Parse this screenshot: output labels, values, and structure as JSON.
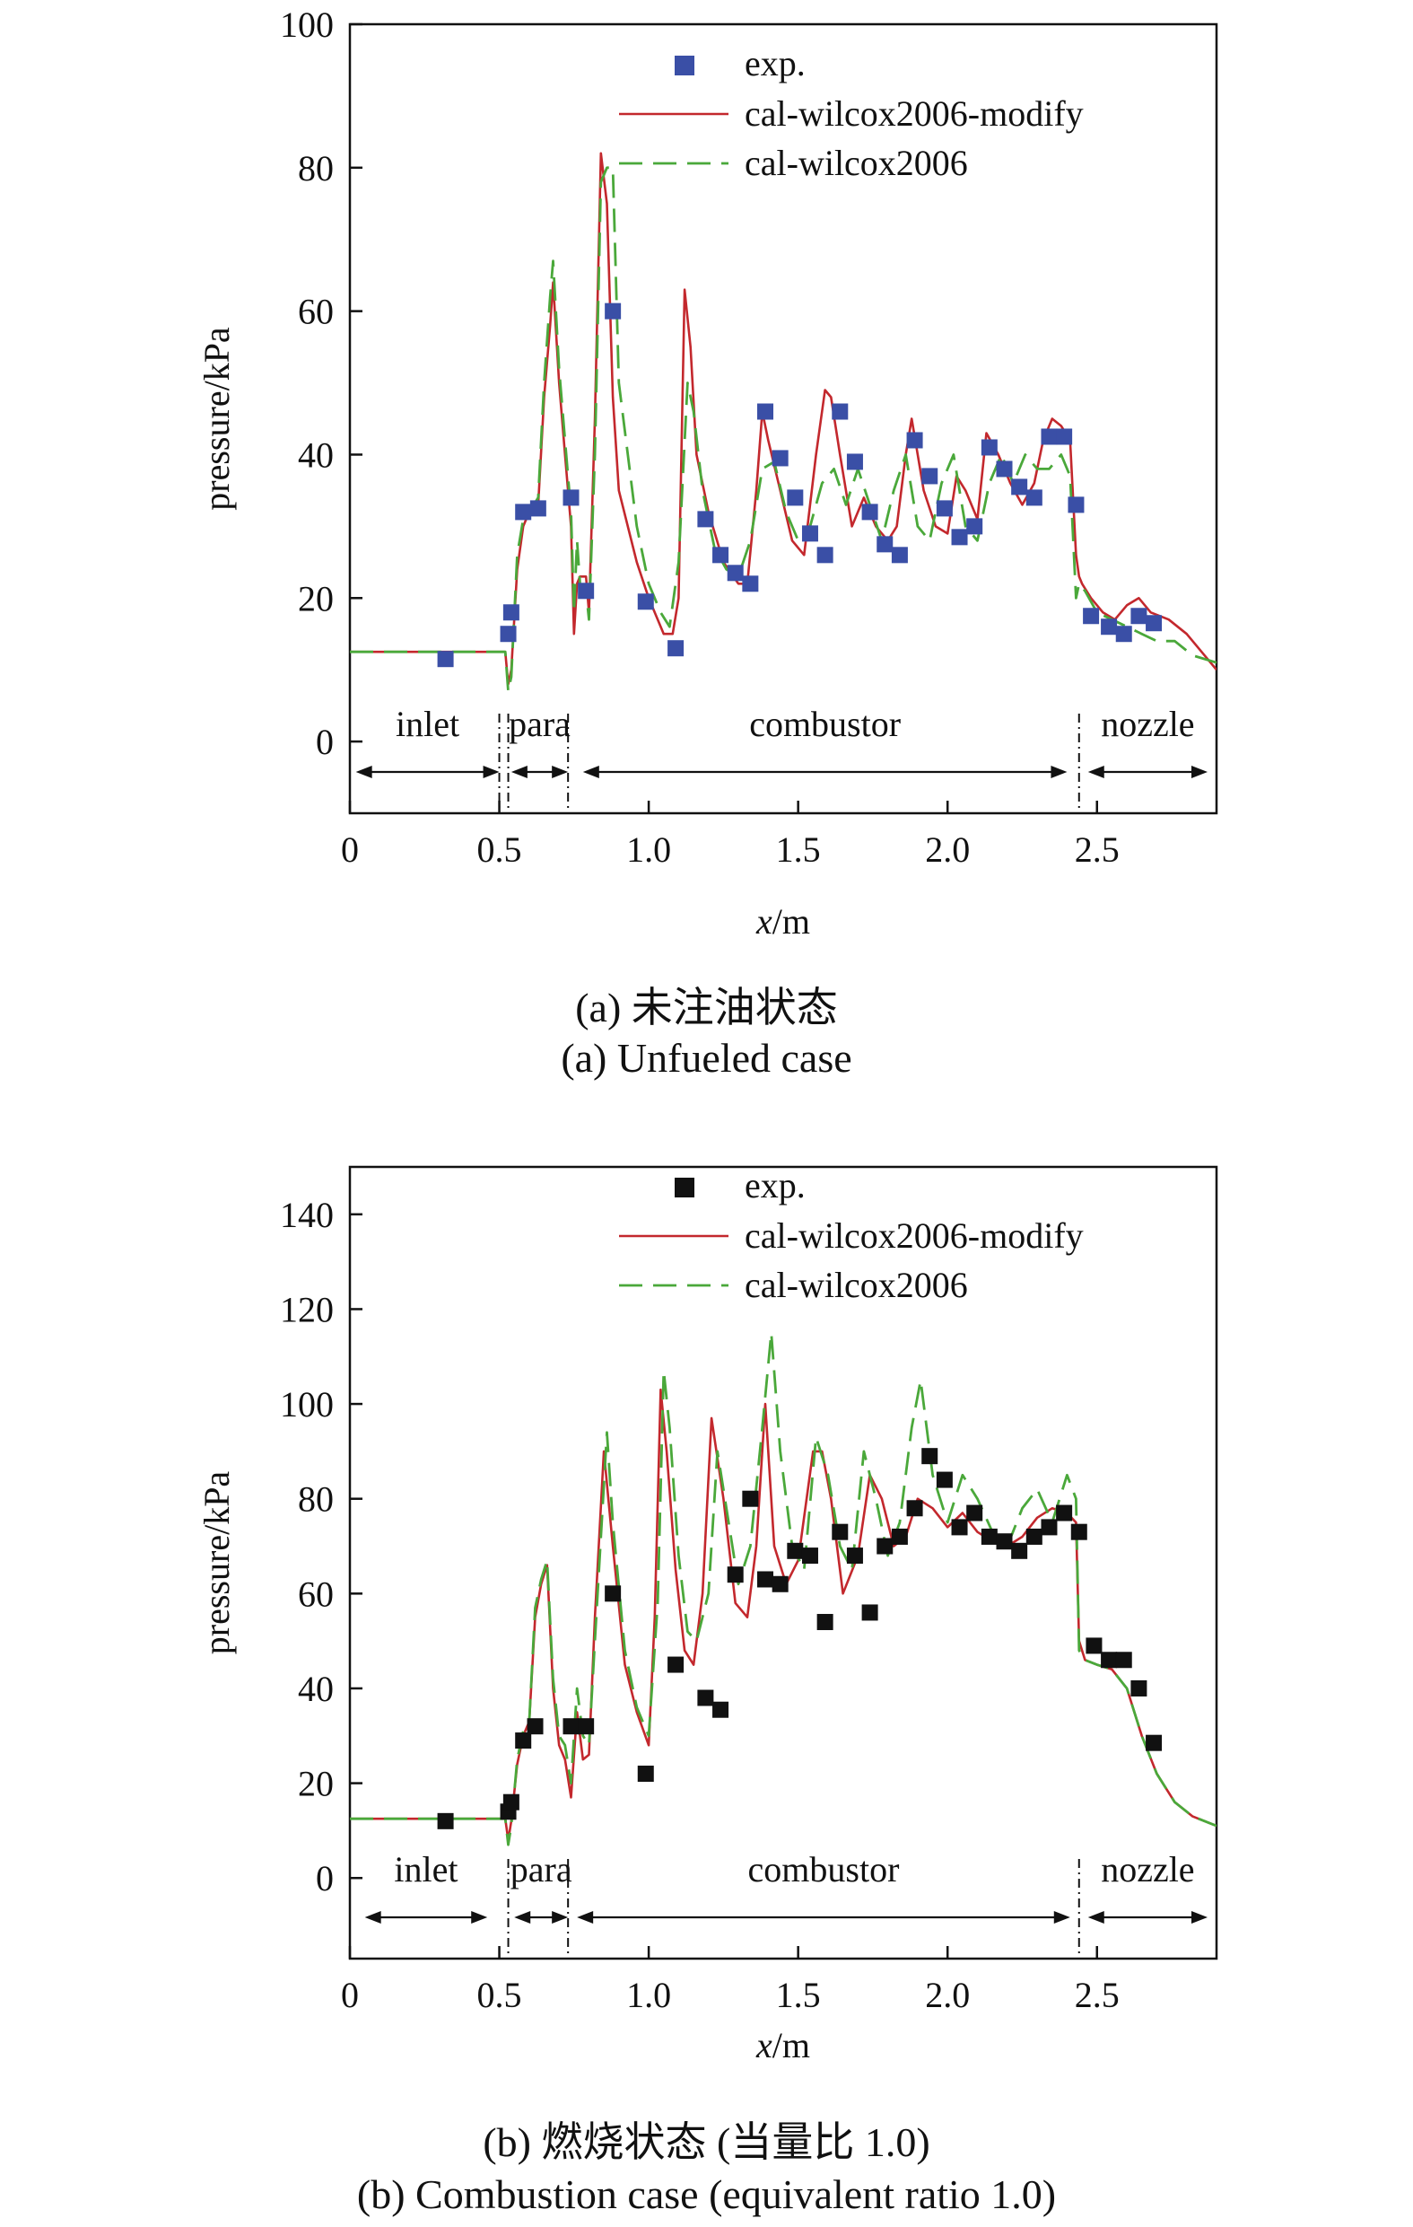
{
  "chart_data": [
    {
      "type": "line",
      "caption_cn": "(a) 未注油状态",
      "caption_en": "(a) Unfueled case",
      "xlabel_var": "x",
      "xlabel_unit": "/m",
      "ylabel": "pressure/kPa",
      "xlim": [
        0,
        2.9
      ],
      "ylim": [
        -10,
        100
      ],
      "xticks": [
        0,
        0.5,
        1.0,
        1.5,
        2.0,
        2.5
      ],
      "xtick_labels": [
        "0",
        "0.5",
        "1.0",
        "1.5",
        "2.0",
        "2.5"
      ],
      "yticks": [
        0,
        20,
        40,
        60,
        80,
        100
      ],
      "ytick_labels": [
        "0",
        "20",
        "40",
        "60",
        "80",
        "100"
      ],
      "grid": false,
      "legend_position": "top-center",
      "legend": [
        "exp.",
        "cal-wilcox2006-modify",
        "cal-wilcox2006"
      ],
      "colors": {
        "exp": "#3a4fa6",
        "modify": "#c3282d",
        "base": "#4aa83a"
      },
      "series": [
        {
          "name": "exp.",
          "kind": "scatter",
          "x": [
            0.32,
            0.53,
            0.54,
            0.58,
            0.63,
            0.74,
            0.79,
            0.88,
            0.99,
            1.09,
            1.19,
            1.24,
            1.29,
            1.34,
            1.39,
            1.44,
            1.49,
            1.54,
            1.59,
            1.64,
            1.69,
            1.74,
            1.79,
            1.84,
            1.89,
            1.94,
            1.99,
            2.04,
            2.09,
            2.14,
            2.19,
            2.24,
            2.29,
            2.34,
            2.39,
            2.43,
            2.48,
            2.54,
            2.59,
            2.64,
            2.69
          ],
          "y": [
            11.5,
            15,
            18,
            32,
            32.5,
            34,
            21,
            60,
            19.5,
            13,
            31,
            26,
            23.5,
            22,
            46,
            39.5,
            34,
            29,
            26,
            46,
            39,
            32,
            27.5,
            26,
            42,
            37,
            32.5,
            28.5,
            30,
            41,
            38,
            35.5,
            34,
            42.5,
            42.5,
            33,
            17.5,
            16,
            15,
            17.5,
            16.5
          ]
        },
        {
          "name": "cal-wilcox2006-modify",
          "kind": "line",
          "style": "solid",
          "x": [
            0,
            0.05,
            0.1,
            0.3,
            0.5,
            0.52,
            0.53,
            0.54,
            0.56,
            0.58,
            0.6,
            0.63,
            0.65,
            0.67,
            0.68,
            0.7,
            0.72,
            0.74,
            0.75,
            0.76,
            0.77,
            0.79,
            0.8,
            0.82,
            0.84,
            0.86,
            0.88,
            0.9,
            0.93,
            0.96,
            1.0,
            1.05,
            1.08,
            1.1,
            1.12,
            1.14,
            1.16,
            1.2,
            1.25,
            1.3,
            1.33,
            1.36,
            1.38,
            1.4,
            1.44,
            1.48,
            1.52,
            1.56,
            1.59,
            1.61,
            1.64,
            1.68,
            1.72,
            1.76,
            1.8,
            1.83,
            1.86,
            1.88,
            1.92,
            1.96,
            2.0,
            2.03,
            2.06,
            2.1,
            2.13,
            2.17,
            2.21,
            2.25,
            2.29,
            2.32,
            2.35,
            2.38,
            2.41,
            2.43,
            2.44,
            2.45,
            2.48,
            2.52,
            2.56,
            2.6,
            2.64,
            2.68,
            2.74,
            2.8,
            2.86,
            2.9
          ],
          "y": [
            12.5,
            12.5,
            12.5,
            12.5,
            12.5,
            12.5,
            8,
            10,
            24,
            30,
            32,
            33,
            48,
            58,
            64,
            50,
            40,
            30,
            15,
            22,
            23,
            23,
            18,
            45,
            82,
            75,
            48,
            35,
            30,
            25,
            20,
            15,
            15,
            20,
            63,
            55,
            40,
            32,
            25,
            22,
            22,
            35,
            46,
            42,
            35,
            28,
            26,
            40,
            49,
            48,
            40,
            30,
            34,
            30,
            28,
            30,
            40,
            45,
            35,
            30,
            29,
            37,
            35,
            31,
            43,
            40,
            36,
            33,
            36,
            42,
            45,
            44,
            42,
            26,
            23,
            22,
            20,
            18,
            17,
            19,
            20,
            18,
            17,
            15,
            12,
            10
          ]
        },
        {
          "name": "cal-wilcox2006",
          "kind": "line",
          "style": "dashed",
          "x": [
            0,
            0.05,
            0.1,
            0.3,
            0.5,
            0.52,
            0.53,
            0.54,
            0.56,
            0.58,
            0.6,
            0.63,
            0.65,
            0.67,
            0.68,
            0.7,
            0.72,
            0.74,
            0.75,
            0.76,
            0.77,
            0.79,
            0.8,
            0.82,
            0.84,
            0.86,
            0.88,
            0.9,
            0.93,
            0.96,
            1.0,
            1.04,
            1.07,
            1.1,
            1.13,
            1.15,
            1.18,
            1.22,
            1.26,
            1.3,
            1.34,
            1.38,
            1.42,
            1.46,
            1.5,
            1.54,
            1.58,
            1.62,
            1.66,
            1.7,
            1.74,
            1.78,
            1.82,
            1.86,
            1.9,
            1.94,
            1.98,
            2.02,
            2.06,
            2.1,
            2.14,
            2.18,
            2.22,
            2.26,
            2.3,
            2.34,
            2.38,
            2.41,
            2.43,
            2.44,
            2.46,
            2.5,
            2.55,
            2.6,
            2.65,
            2.7,
            2.76,
            2.82,
            2.9
          ],
          "y": [
            12.5,
            12.5,
            12.5,
            12.5,
            12.5,
            12.5,
            7,
            9,
            26,
            31,
            32,
            34,
            50,
            62,
            67,
            52,
            42,
            32,
            18,
            28,
            22,
            21,
            17,
            40,
            78,
            80,
            80,
            50,
            40,
            30,
            22,
            18,
            16,
            25,
            50,
            46,
            35,
            27,
            24,
            23,
            28,
            38,
            39,
            32,
            28,
            30,
            36,
            38,
            33,
            38,
            33,
            28,
            35,
            40,
            30,
            28,
            36,
            40,
            30,
            28,
            36,
            40,
            36,
            40,
            38,
            38,
            40,
            37,
            20,
            22,
            21,
            18,
            17,
            16,
            15,
            14,
            14,
            12,
            11
          ]
        }
      ],
      "regions": [
        {
          "label": "inlet",
          "from": 0.02,
          "to": 0.5,
          "boundary": 0.5
        },
        {
          "label": "para",
          "from": 0.54,
          "to": 0.73,
          "boundary": 0.73
        },
        {
          "label": "combustor",
          "from": 0.78,
          "to": 2.4,
          "boundary": 2.44
        },
        {
          "label": "nozzle",
          "from": 2.47,
          "to": 2.87,
          "boundary": null
        }
      ],
      "boundaries": [
        0.5,
        0.53,
        0.73,
        2.44
      ]
    },
    {
      "type": "line",
      "caption_cn": "(b) 燃烧状态 (当量比 1.0)",
      "caption_en": "(b) Combustion case (equivalent ratio 1.0)",
      "xlabel_var": "x",
      "xlabel_unit": "/m",
      "ylabel": "pressure/kPa",
      "xlim": [
        0,
        2.9
      ],
      "ylim": [
        -17,
        150
      ],
      "xticks": [
        0,
        0.5,
        1.0,
        1.5,
        2.0,
        2.5
      ],
      "xtick_labels": [
        "0",
        "0.5",
        "1.0",
        "1.5",
        "2.0",
        "2.5"
      ],
      "yticks": [
        0,
        20,
        40,
        60,
        80,
        100,
        120,
        140
      ],
      "ytick_labels": [
        "0",
        "20",
        "40",
        "60",
        "80",
        "100",
        "120",
        "140"
      ],
      "grid": false,
      "legend_position": "top-center",
      "legend": [
        "exp.",
        "cal-wilcox2006-modify",
        "cal-wilcox2006"
      ],
      "colors": {
        "exp": "#111111",
        "modify": "#c3282d",
        "base": "#4aa83a"
      },
      "series": [
        {
          "name": "exp.",
          "kind": "scatter",
          "x": [
            0.32,
            0.53,
            0.54,
            0.58,
            0.62,
            0.74,
            0.79,
            0.88,
            0.99,
            1.09,
            1.19,
            1.24,
            1.29,
            1.34,
            1.39,
            1.44,
            1.49,
            1.54,
            1.59,
            1.64,
            1.69,
            1.74,
            1.79,
            1.84,
            1.89,
            1.94,
            1.99,
            2.04,
            2.09,
            2.14,
            2.19,
            2.24,
            2.29,
            2.34,
            2.39,
            2.44,
            2.49,
            2.54,
            2.59,
            2.64,
            2.69
          ],
          "y": [
            12,
            14,
            16,
            29,
            32,
            32,
            32,
            60,
            22,
            45,
            38,
            35.5,
            64,
            80,
            63,
            62,
            69,
            68,
            54,
            73,
            68,
            56,
            70,
            72,
            78,
            89,
            84,
            74,
            77,
            72,
            71,
            69,
            72,
            74,
            77,
            73,
            49,
            46,
            46,
            40,
            28.5
          ]
        },
        {
          "name": "cal-wilcox2006-modify",
          "kind": "line",
          "style": "solid",
          "x": [
            0,
            0.05,
            0.1,
            0.3,
            0.5,
            0.52,
            0.53,
            0.54,
            0.56,
            0.58,
            0.6,
            0.62,
            0.64,
            0.66,
            0.68,
            0.7,
            0.72,
            0.74,
            0.76,
            0.78,
            0.8,
            0.82,
            0.85,
            0.88,
            0.92,
            0.96,
            1.0,
            1.02,
            1.04,
            1.06,
            1.09,
            1.12,
            1.15,
            1.18,
            1.21,
            1.25,
            1.29,
            1.33,
            1.36,
            1.39,
            1.42,
            1.46,
            1.5,
            1.55,
            1.58,
            1.61,
            1.65,
            1.7,
            1.74,
            1.78,
            1.82,
            1.86,
            1.9,
            1.95,
            2.0,
            2.05,
            2.1,
            2.15,
            2.2,
            2.25,
            2.3,
            2.35,
            2.4,
            2.43,
            2.44,
            2.46,
            2.5,
            2.55,
            2.6,
            2.65,
            2.7,
            2.76,
            2.82,
            2.9
          ],
          "y": [
            12.5,
            12.5,
            12.5,
            12.5,
            12.5,
            12.5,
            8,
            12,
            24,
            30,
            33,
            55,
            62,
            66,
            40,
            28,
            25,
            17,
            35,
            25,
            26,
            55,
            90,
            70,
            45,
            35,
            28,
            55,
            103,
            90,
            65,
            48,
            45,
            60,
            97,
            80,
            58,
            55,
            70,
            100,
            70,
            62,
            67,
            90,
            90,
            80,
            60,
            68,
            85,
            80,
            70,
            72,
            80,
            78,
            74,
            77,
            73,
            71,
            70,
            72,
            76,
            78,
            77,
            75,
            50,
            46,
            45,
            44,
            40,
            30,
            22,
            16,
            13,
            11
          ]
        },
        {
          "name": "cal-wilcox2006",
          "kind": "line",
          "style": "dashed",
          "x": [
            0,
            0.05,
            0.1,
            0.3,
            0.5,
            0.52,
            0.53,
            0.54,
            0.56,
            0.58,
            0.6,
            0.62,
            0.64,
            0.66,
            0.68,
            0.7,
            0.72,
            0.74,
            0.76,
            0.78,
            0.8,
            0.82,
            0.86,
            0.88,
            0.92,
            0.96,
            1.0,
            1.03,
            1.05,
            1.07,
            1.1,
            1.13,
            1.16,
            1.2,
            1.23,
            1.26,
            1.3,
            1.34,
            1.38,
            1.41,
            1.44,
            1.48,
            1.52,
            1.56,
            1.6,
            1.64,
            1.68,
            1.72,
            1.76,
            1.8,
            1.84,
            1.88,
            1.91,
            1.95,
            2.0,
            2.05,
            2.1,
            2.15,
            2.2,
            2.25,
            2.3,
            2.35,
            2.4,
            2.43,
            2.44,
            2.46,
            2.5,
            2.55,
            2.6,
            2.65,
            2.7,
            2.76,
            2.82,
            2.9
          ],
          "y": [
            12.5,
            12.5,
            12.5,
            12.5,
            12.5,
            12.5,
            7,
            11,
            25,
            31,
            33,
            57,
            63,
            67,
            42,
            30,
            28,
            20,
            40,
            30,
            28,
            50,
            94,
            75,
            48,
            36,
            30,
            58,
            107,
            95,
            68,
            52,
            50,
            60,
            90,
            78,
            62,
            70,
            95,
            115,
            90,
            70,
            65,
            93,
            85,
            70,
            65,
            90,
            80,
            68,
            75,
            95,
            105,
            85,
            75,
            85,
            80,
            73,
            70,
            78,
            82,
            75,
            85,
            80,
            48,
            46,
            45,
            44,
            40,
            30,
            22,
            16,
            13,
            11
          ]
        }
      ],
      "regions": [
        {
          "label": "inlet",
          "from": 0.05,
          "to": 0.46,
          "boundary": 0.53
        },
        {
          "label": "para",
          "from": 0.55,
          "to": 0.73,
          "boundary": 0.73
        },
        {
          "label": "combustor",
          "from": 0.76,
          "to": 2.41,
          "boundary": 2.44
        },
        {
          "label": "nozzle",
          "from": 2.47,
          "to": 2.87,
          "boundary": null
        }
      ],
      "boundaries": [
        0.53,
        0.73,
        2.44
      ]
    }
  ]
}
